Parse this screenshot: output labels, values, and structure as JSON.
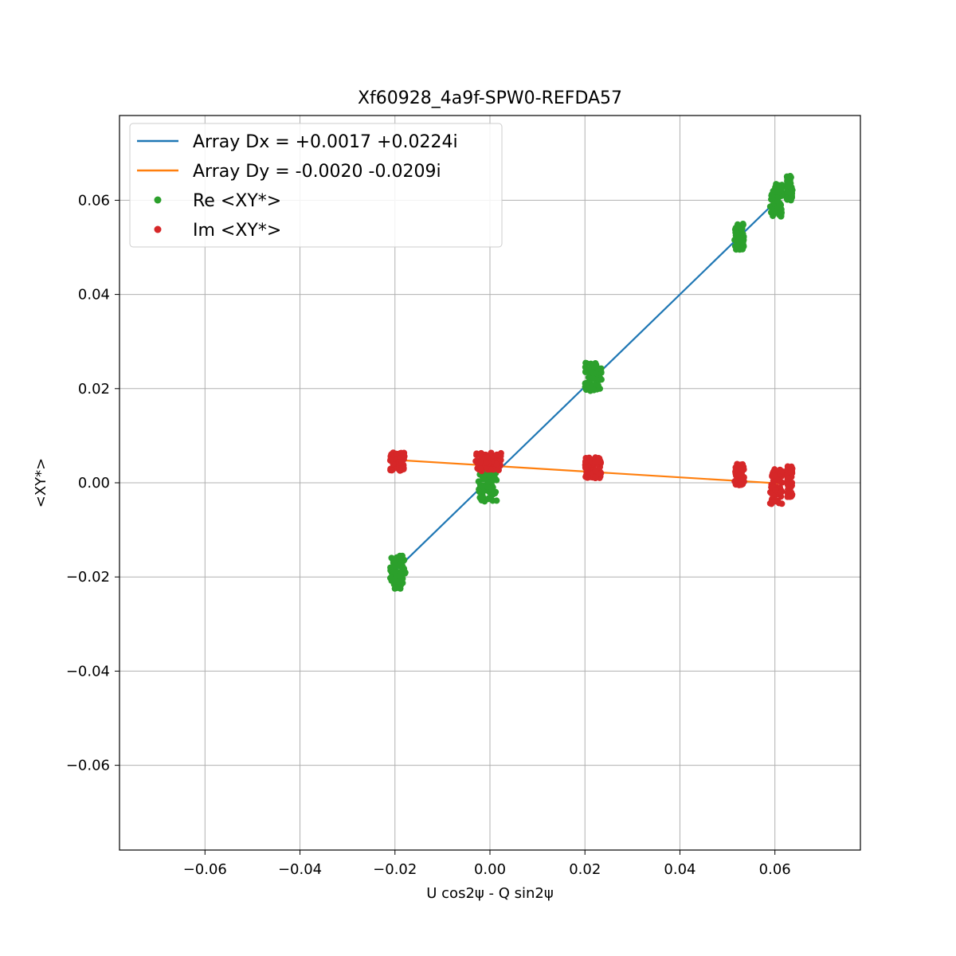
{
  "chart_data": {
    "type": "scatter",
    "title": "Xf60928_4a9f-SPW0-REFDA57",
    "xlabel": "U cos2ψ - Q sin2ψ",
    "ylabel": "<XY*>",
    "xlim": [
      -0.078,
      0.078
    ],
    "ylim": [
      -0.078,
      0.078
    ],
    "xticks": [
      -0.06,
      -0.04,
      -0.02,
      0.0,
      0.02,
      0.04,
      0.06
    ],
    "xtick_labels": [
      "−0.06",
      "−0.04",
      "−0.02",
      "0.00",
      "0.02",
      "0.04",
      "0.06"
    ],
    "yticks": [
      -0.06,
      -0.04,
      -0.02,
      0.0,
      0.02,
      0.04,
      0.06
    ],
    "ytick_labels": [
      "−0.06",
      "−0.04",
      "−0.02",
      "0.00",
      "0.02",
      "0.04",
      "0.06"
    ],
    "grid": true,
    "legend_position": "top-left",
    "lines": [
      {
        "name": "Array Dx = +0.0017 +0.0224i",
        "color": "#1f77b4",
        "x": [
          -0.0205,
          0.0635
        ],
        "y": [
          -0.0192,
          0.063
        ]
      },
      {
        "name": "Array Dy = -0.0020 -0.0209i",
        "color": "#ff7f0e",
        "x": [
          -0.0205,
          0.0635
        ],
        "y": [
          0.0049,
          -0.0003
        ]
      }
    ],
    "series": [
      {
        "name": "Re <XY*>",
        "color": "#2ca02c",
        "clusters": [
          {
            "x": [
              -0.021,
              -0.0178
            ],
            "y": [
              -0.0225,
              -0.0155
            ]
          },
          {
            "x": [
              -0.0025,
              0.0015
            ],
            "y": [
              -0.004,
              0.0025
            ]
          },
          {
            "x": [
              0.02,
              0.0235
            ],
            "y": [
              0.0195,
              0.0255
            ]
          },
          {
            "x": [
              0.0515,
              0.0535
            ],
            "y": [
              0.0495,
              0.055
            ]
          },
          {
            "x": [
              0.059,
              0.0615
            ],
            "y": [
              0.0565,
              0.0635
            ]
          },
          {
            "x": [
              0.0625,
              0.0637
            ],
            "y": [
              0.06,
              0.0655
            ]
          }
        ]
      },
      {
        "name": "Im <XY*>",
        "color": "#d62728",
        "clusters": [
          {
            "x": [
              -0.021,
              -0.018
            ],
            "y": [
              0.0025,
              0.0065
            ]
          },
          {
            "x": [
              -0.003,
              0.0025
            ],
            "y": [
              0.0025,
              0.0065
            ]
          },
          {
            "x": [
              0.02,
              0.0235
            ],
            "y": [
              0.001,
              0.0055
            ]
          },
          {
            "x": [
              0.0515,
              0.0535
            ],
            "y": [
              -0.0005,
              0.004
            ]
          },
          {
            "x": [
              0.059,
              0.0615
            ],
            "y": [
              -0.0045,
              0.0035
            ]
          },
          {
            "x": [
              0.0625,
              0.0637
            ],
            "y": [
              -0.003,
              0.0035
            ]
          }
        ]
      }
    ]
  }
}
